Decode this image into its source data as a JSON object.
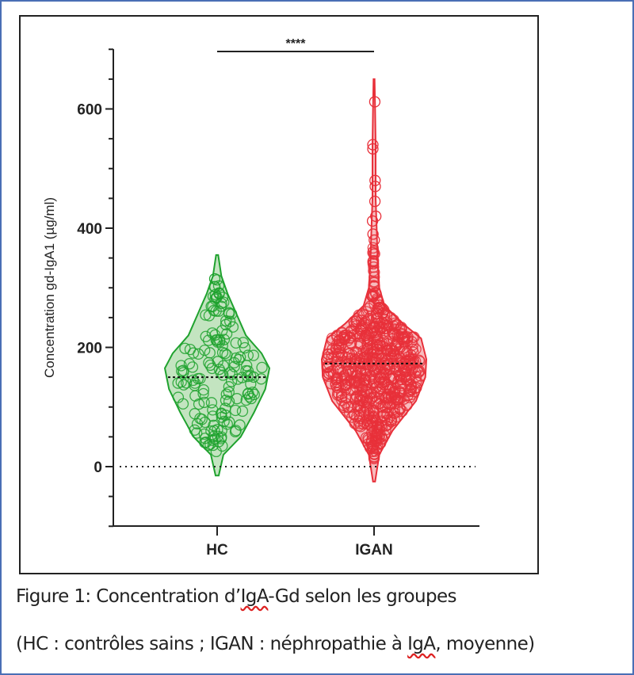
{
  "chart_data": {
    "type": "violin-scatter",
    "title": "",
    "ylabel": "Concentration gd-IgA1 (µg/ml)",
    "xlabel": "",
    "ylim": [
      -100,
      700
    ],
    "yticks": [
      0,
      200,
      400,
      600
    ],
    "ytick_labels": [
      "0",
      "200",
      "400",
      "600"
    ],
    "minor_tick_step": 50,
    "reference_line": 0,
    "significance": {
      "label": "****",
      "between": [
        "HC",
        "IGAN"
      ]
    },
    "categories": [
      "HC",
      "IGAN"
    ],
    "series": [
      {
        "name": "HC",
        "color": "#1fa22e",
        "fill": "#a9d9a5",
        "n": 160,
        "mean": 150,
        "min": 25,
        "max": 315,
        "violin_range": [
          -15,
          355
        ],
        "density": [
          [
            -15,
            0.03
          ],
          [
            20,
            0.12
          ],
          [
            50,
            0.45
          ],
          [
            90,
            0.7
          ],
          [
            130,
            0.92
          ],
          [
            165,
            1.0
          ],
          [
            190,
            0.85
          ],
          [
            220,
            0.55
          ],
          [
            260,
            0.35
          ],
          [
            290,
            0.2
          ],
          [
            320,
            0.08
          ],
          [
            355,
            0.02
          ]
        ]
      },
      {
        "name": "IGAN",
        "color": "#e8303a",
        "fill": "#f3a0a3",
        "n": 700,
        "mean": 173,
        "min": 12,
        "max": 612,
        "violin_range": [
          -25,
          650
        ],
        "density": [
          [
            -25,
            0.02
          ],
          [
            20,
            0.1
          ],
          [
            60,
            0.35
          ],
          [
            110,
            0.8
          ],
          [
            150,
            0.98
          ],
          [
            180,
            1.0
          ],
          [
            215,
            0.9
          ],
          [
            240,
            0.55
          ],
          [
            270,
            0.2
          ],
          [
            300,
            0.1
          ],
          [
            340,
            0.07
          ],
          [
            400,
            0.05
          ],
          [
            450,
            0.03
          ],
          [
            540,
            0.03
          ],
          [
            600,
            0.02
          ],
          [
            650,
            0.01
          ]
        ]
      }
    ]
  },
  "caption": {
    "line1_a": "Figure 1: Concentration d’",
    "line1_b": "IgA",
    "line1_c": "-Gd selon les groupes",
    "line2_a": "(HC : contrôles sains ; IGAN : néphropathie à ",
    "line2_b": "IgA",
    "line2_c": ", moyenne)"
  }
}
